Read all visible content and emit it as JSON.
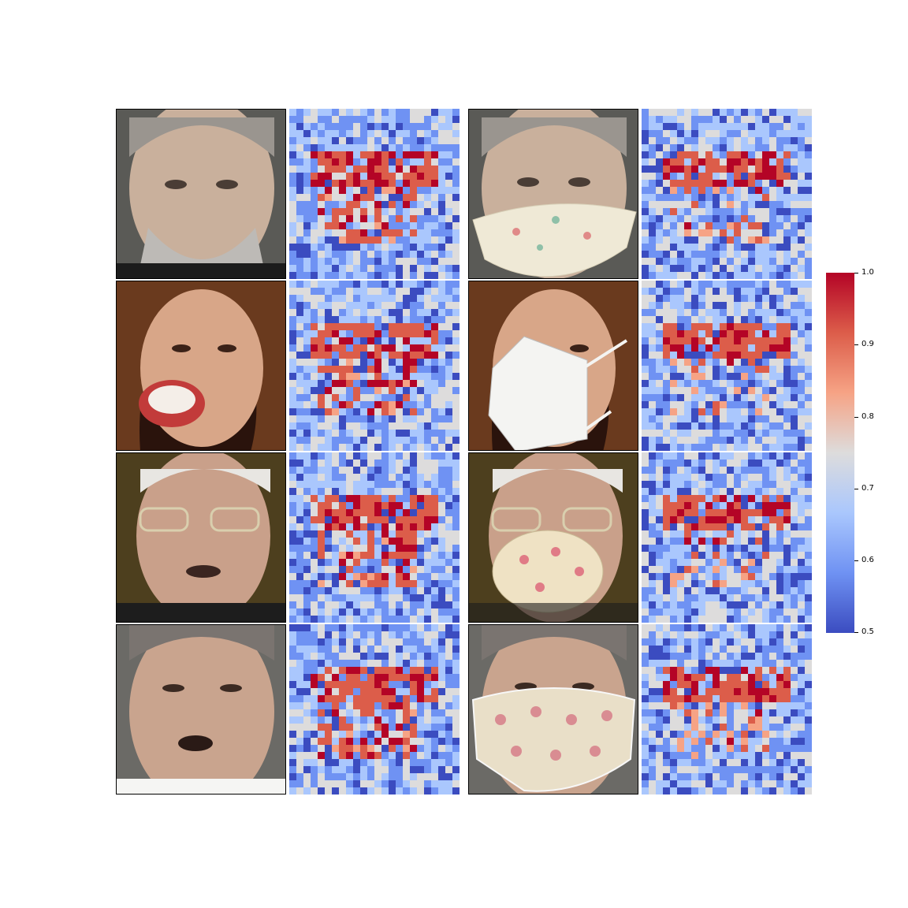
{
  "figure": {
    "columns": [
      "original face",
      "similarity map (original)",
      "masked face",
      "similarity map (masked)"
    ],
    "rows": [
      {
        "subject": "grey-haired bearded man",
        "mask": "floral fabric mask",
        "mask_color": "#efe9d6"
      },
      {
        "subject": "laughing woman with brown hair",
        "mask": "white FFP2 respirator",
        "mask_color": "#f4f4f2"
      },
      {
        "subject": "elderly man with glasses",
        "mask": "heart-pattern cup mask",
        "mask_color": "#efe2c4"
      },
      {
        "subject": "middle-aged man",
        "mask": "heart-pattern fabric mask",
        "mask_color": "#e9dfc8"
      }
    ]
  },
  "colorbar": {
    "min": 0.5,
    "max": 1.0,
    "ticks": [
      "1.0",
      "0.9",
      "0.8",
      "0.7",
      "0.6",
      "0.5"
    ],
    "colormap": [
      "#3b4cc0",
      "#6f92f3",
      "#aac7fd",
      "#dddcdc",
      "#f6a385",
      "#dc5d4a",
      "#b40426"
    ]
  }
}
